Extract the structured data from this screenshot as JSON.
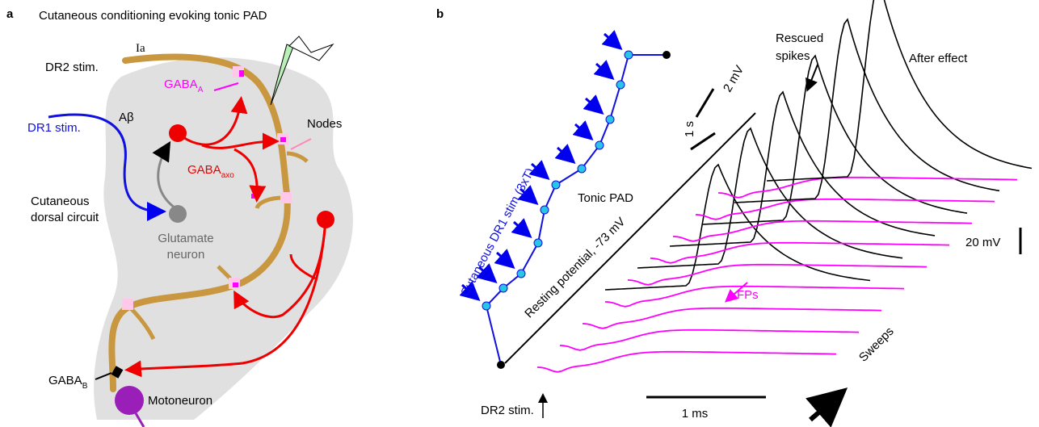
{
  "panel_a": {
    "label": "a",
    "title": "Cutaneous conditioning evoking tonic PAD",
    "ia": "Ia",
    "dr2_stim": "DR2 stim.",
    "gaba_a": {
      "main": "GABA",
      "sub": "A"
    },
    "a_beta": "Aβ",
    "dr1_stim": "DR1 stim.",
    "nodes": "Nodes",
    "gaba_axo": {
      "main": "GABA",
      "sub": "axo"
    },
    "dorsal_circuit": [
      "Cutaneous",
      "dorsal circuit"
    ],
    "glutamate_neuron": [
      "Glutamate",
      "neuron"
    ],
    "gaba_b": {
      "main": "GABA",
      "sub": "B"
    },
    "motoneuron": "Motoneuron"
  },
  "panel_b": {
    "label": "b",
    "dr1_stim": "Cutaneous DR1 stim (3xT)",
    "tonic_pad": "Tonic PAD",
    "resting": "Resting potential, -73 mV",
    "scale_2mv": "2 mV",
    "scale_1s": "1 s",
    "rescued": [
      "Rescued",
      "spikes"
    ],
    "after_effect": "After effect",
    "scale_20mv": "20 mV",
    "fps": "FPs",
    "sweeps": "Sweeps",
    "dr2_stim": "DR2 stim.",
    "scale_1ms": "1 ms"
  }
}
